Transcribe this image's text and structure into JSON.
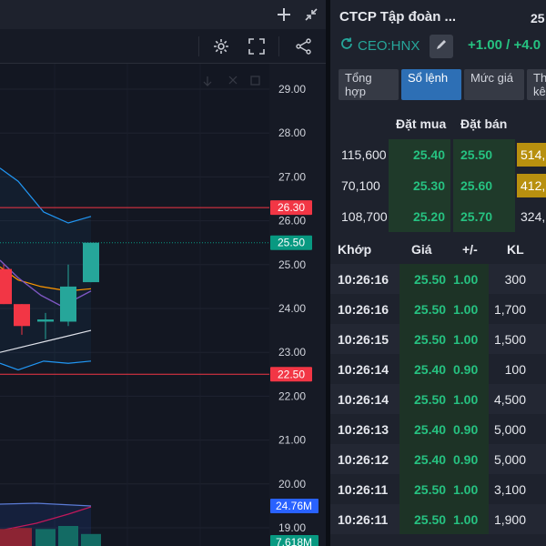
{
  "chart": {
    "price_labels": [
      {
        "text": "29.00",
        "value": 29.0
      },
      {
        "text": "28.00",
        "value": 28.0
      },
      {
        "text": "27.00",
        "value": 27.0
      },
      {
        "text": "26.00",
        "value": 26.0
      },
      {
        "text": "25.00",
        "value": 25.0
      },
      {
        "text": "24.00",
        "value": 24.0
      },
      {
        "text": "23.00",
        "value": 23.0
      },
      {
        "text": "22.00",
        "value": 22.0
      },
      {
        "text": "21.00",
        "value": 21.0
      },
      {
        "text": "20.00",
        "value": 20.0
      },
      {
        "text": "19.00",
        "value": 19.0
      }
    ],
    "marker_upper": {
      "text": "26.30",
      "value": 26.3,
      "color": "#f23645"
    },
    "marker_last": {
      "text": "25.50",
      "value": 25.5,
      "color": "#089981"
    },
    "marker_lower": {
      "text": "22.50",
      "value": 22.5,
      "color": "#f23645"
    },
    "marker_vol_ma": {
      "text": "24.76M",
      "color": "#2962ff"
    },
    "marker_vol": {
      "text": "7.618M",
      "color": "#089981"
    },
    "colors": {
      "up": "#26a69a",
      "down": "#f23645",
      "band": "#2196f3",
      "ma_orange": "#ff9800",
      "ma_purple": "#7e57c2",
      "ma_white": "#e0e3eb"
    }
  },
  "chart_data": {
    "type": "candlestick",
    "candles": [
      {
        "open": 24.9,
        "high": 25.0,
        "low": 24.1,
        "close": 24.1,
        "dir": "down"
      },
      {
        "open": 24.1,
        "high": 24.1,
        "low": 23.4,
        "close": 23.6,
        "dir": "down"
      },
      {
        "open": 23.7,
        "high": 23.9,
        "low": 23.3,
        "close": 23.75,
        "dir": "up"
      },
      {
        "open": 23.7,
        "high": 25.0,
        "low": 23.6,
        "close": 24.5,
        "dir": "up"
      },
      {
        "open": 24.6,
        "high": 25.5,
        "low": 24.6,
        "close": 25.5,
        "dir": "up"
      }
    ],
    "volumes": [
      {
        "dir": "down",
        "value": 0.85
      },
      {
        "dir": "down",
        "value": 0.9
      },
      {
        "dir": "up",
        "value": 0.85
      },
      {
        "dir": "up",
        "value": 1.0
      },
      {
        "dir": "up",
        "value": 0.6
      }
    ],
    "price_range": [
      19.0,
      29.0
    ]
  },
  "panel": {
    "company": "CTCP Tập đoàn ...",
    "price_top": "25",
    "ticker": "CEO:HNX",
    "change": "+1.00 / +4.0",
    "tabs": [
      "Tổng hợp",
      "Sổ lệnh",
      "Mức giá",
      "Thống kê"
    ],
    "active_tab": 1,
    "orderbook_headers": {
      "bid": "Đặt mua",
      "ask": "Đặt bán"
    },
    "orderbook": [
      {
        "bid_vol": "115,600",
        "bid": "25.40",
        "ask": "25.50",
        "ask_vol": "514,",
        "highlight": true
      },
      {
        "bid_vol": "70,100",
        "bid": "25.30",
        "ask": "25.60",
        "ask_vol": "412,",
        "highlight": true
      },
      {
        "bid_vol": "108,700",
        "bid": "25.20",
        "ask": "25.70",
        "ask_vol": "324,",
        "highlight": false
      }
    ],
    "trades_headers": {
      "time": "Khớp",
      "price": "Giá",
      "change": "+/-",
      "volume": "KL"
    },
    "trades": [
      {
        "time": "10:26:16",
        "price": "25.50",
        "change": "1.00",
        "volume": "300"
      },
      {
        "time": "10:26:16",
        "price": "25.50",
        "change": "1.00",
        "volume": "1,700"
      },
      {
        "time": "10:26:15",
        "price": "25.50",
        "change": "1.00",
        "volume": "1,500"
      },
      {
        "time": "10:26:14",
        "price": "25.40",
        "change": "0.90",
        "volume": "100"
      },
      {
        "time": "10:26:14",
        "price": "25.50",
        "change": "1.00",
        "volume": "4,500"
      },
      {
        "time": "10:26:13",
        "price": "25.40",
        "change": "0.90",
        "volume": "5,000"
      },
      {
        "time": "10:26:12",
        "price": "25.40",
        "change": "0.90",
        "volume": "5,000"
      },
      {
        "time": "10:26:11",
        "price": "25.50",
        "change": "1.00",
        "volume": "3,100"
      },
      {
        "time": "10:26:11",
        "price": "25.50",
        "change": "1.00",
        "volume": "1,900"
      }
    ]
  }
}
